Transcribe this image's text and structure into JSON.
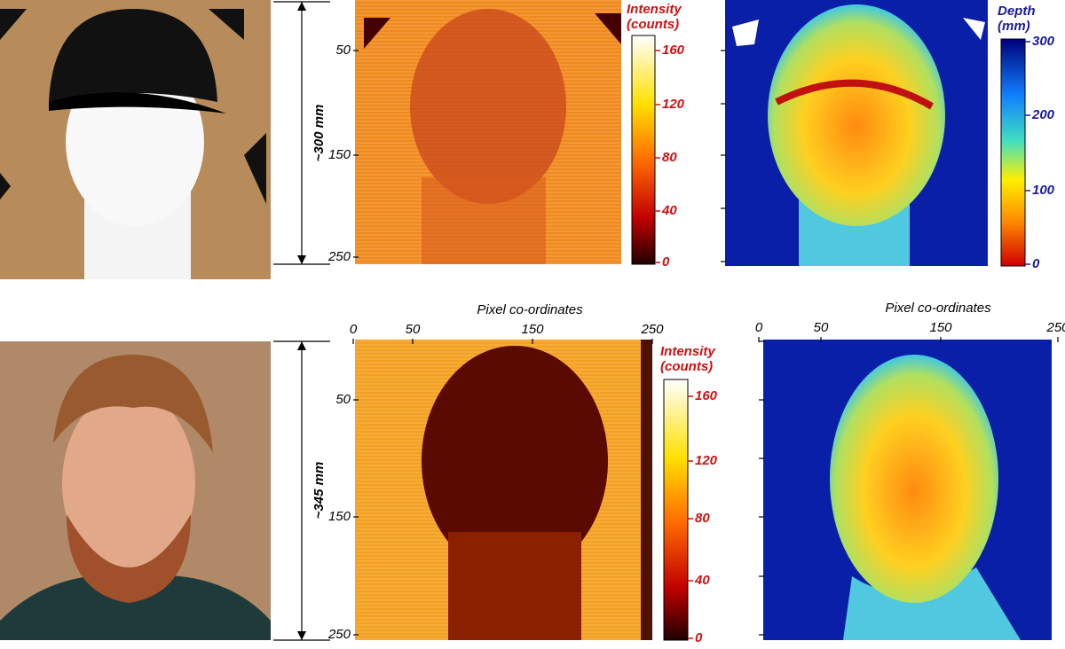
{
  "top": {
    "scale_label": "~300 mm",
    "intensity": {
      "yticks": [
        50,
        150,
        250
      ],
      "colorbar": {
        "title": [
          "Intensity",
          "(counts)"
        ],
        "ticks": [
          160,
          120,
          80,
          40,
          0
        ]
      }
    },
    "depth": {
      "colorbar": {
        "title": [
          "Depth",
          "(mm)"
        ],
        "ticks": [
          300,
          200,
          100,
          0
        ]
      }
    }
  },
  "bottom": {
    "scale_label": "~345 mm",
    "intensity": {
      "xlabel": "Pixel co-ordinates",
      "xticks": [
        0,
        50,
        150,
        250
      ],
      "yticks": [
        50,
        150,
        250
      ],
      "colorbar": {
        "title": [
          "Intensity",
          "(counts)"
        ],
        "ticks": [
          160,
          120,
          80,
          40,
          0
        ]
      }
    },
    "depth": {
      "xlabel": "Pixel co-ordinates",
      "xticks": [
        0,
        50,
        150,
        250
      ]
    }
  }
}
